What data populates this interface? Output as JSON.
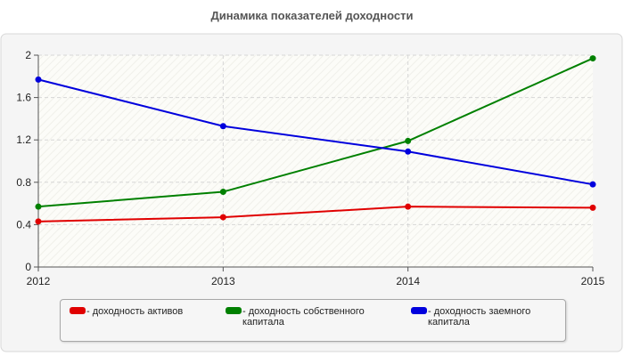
{
  "chart_data": {
    "type": "line",
    "title": "Динамика показателей доходности",
    "x": [
      "2012",
      "2013",
      "2014",
      "2015"
    ],
    "y_ticks": [
      "0",
      "0.4",
      "0.8",
      "1.2",
      "1.6",
      "2"
    ],
    "ylim": [
      0,
      2
    ],
    "grid": true,
    "legend_position": "bottom",
    "series": [
      {
        "name": "- доходность активов",
        "color": "#e00000",
        "values": [
          0.43,
          0.47,
          0.57,
          0.56
        ]
      },
      {
        "name": "- доходность собственного капитала",
        "color": "#008000",
        "values": [
          0.57,
          0.71,
          1.19,
          1.97
        ]
      },
      {
        "name": "- доходность заемного капитала",
        "color": "#0000dd",
        "values": [
          1.77,
          1.33,
          1.09,
          0.78
        ]
      }
    ]
  }
}
